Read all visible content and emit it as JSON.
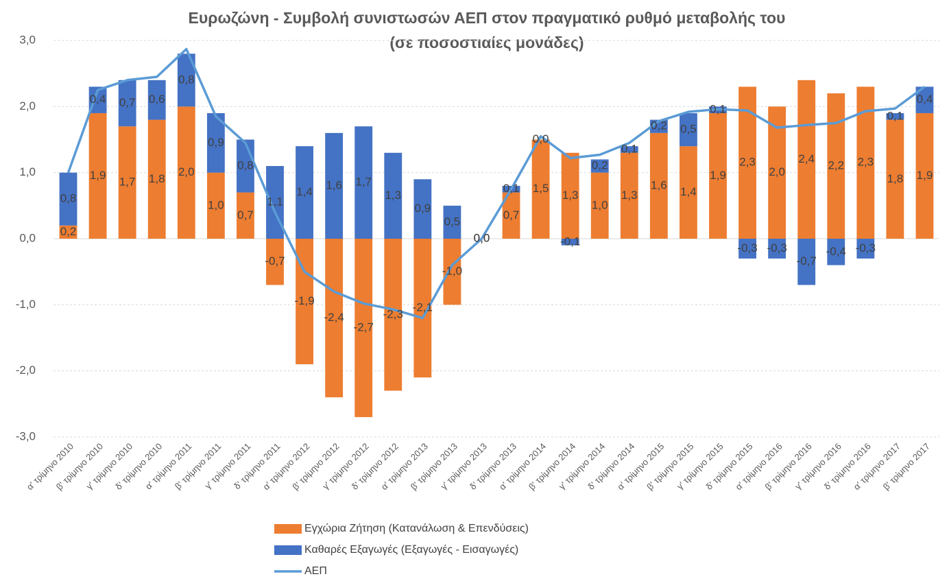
{
  "chart_data": {
    "type": "bar",
    "stacked": true,
    "title": "Ευρωζώνη - Συμβολή συνιστωσών ΑΕΠ στον πραγματικό ρυθμό μεταβολής του",
    "subtitle": "(σε ποσοστιαίες μονάδες)",
    "categories": [
      "α' τρίμηνο 2010",
      "β' τρίμηνο 2010",
      "γ' τρίμηνο 2010",
      "δ' τρίμηνο 2010",
      "α' τρίμηνο 2011",
      "β' τρίμηνο 2011",
      "γ' τρίμηνο 2011",
      "δ' τρίμηνο 2011",
      "α' τρίμηνο 2012",
      "β' τρίμηνο 2012",
      "γ' τρίμηνο 2012",
      "δ' τρίμηνο 2012",
      "α' τρίμηνο 2013",
      "β' τρίμηνο 2013",
      "γ' τρίμηνο 2013",
      "δ' τρίμηνο 2013",
      "α' τρίμηνο 2014",
      "β' τρίμηνο 2014",
      "γ' τρίμηνο 2014",
      "δ' τρίμηνο 2014",
      "α' τρίμηνο 2015",
      "β' τρίμηνο 2015",
      "γ' τρίμηνο 2015",
      "δ' τρίμηνο 2015",
      "α' τρίμηνο 2016",
      "β' τρίμηνο 2016",
      "γ' τρίμηνο 2016",
      "δ' τρίμηνο 2016",
      "α' τρίμηνο 2017",
      "β' τρίμηνο 2017"
    ],
    "series": [
      {
        "name": "Εγχώρια Ζήτηση (Κατανάλωση & Επενδύσεις)",
        "type": "bar",
        "color": "#ed7d31",
        "values": [
          0.2,
          1.9,
          1.7,
          1.8,
          2.0,
          1.0,
          0.7,
          -0.7,
          -1.9,
          -2.4,
          -2.7,
          -2.3,
          -2.1,
          -1.0,
          0.0,
          0.7,
          1.5,
          1.3,
          1.0,
          1.3,
          1.6,
          1.4,
          1.9,
          2.3,
          2.0,
          2.4,
          2.2,
          2.3,
          1.8,
          1.9
        ],
        "value_labels": [
          "0,2",
          "1,9",
          "1,7",
          "1,8",
          "2,0",
          "1,0",
          "0,7",
          "-0,7",
          "-1,9",
          "-2,4",
          "-2,7",
          "-2,3",
          "-2,1",
          "-1,0",
          "0,0",
          "0,7",
          "1,5",
          "1,3",
          "1,0",
          "1,3",
          "1,6",
          "1,4",
          "1,9",
          "2,3",
          "2,0",
          "2,4",
          "2,2",
          "2,3",
          "1,8",
          "1,9"
        ]
      },
      {
        "name": "Καθαρές Εξαγωγές (Εξαγωγές - Εισαγωγές)",
        "type": "bar",
        "color": "#4472c4",
        "values": [
          0.8,
          0.4,
          0.7,
          0.6,
          0.8,
          0.9,
          0.8,
          1.1,
          1.4,
          1.6,
          1.7,
          1.3,
          0.9,
          0.5,
          0.0,
          0.1,
          0.0,
          -0.1,
          0.2,
          0.1,
          0.2,
          0.5,
          0.1,
          -0.3,
          -0.3,
          -0.7,
          -0.4,
          -0.3,
          0.1,
          0.4
        ],
        "value_labels": [
          "0,8",
          "0,4",
          "0,7",
          "0,6",
          "0,8",
          "0,9",
          "0,8",
          "1,1",
          "1,4",
          "1,6",
          "1,7",
          "1,3",
          "0,9",
          "0,5",
          "0,0",
          "0,1",
          "0,0",
          "-0,1",
          "0,2",
          "0,1",
          "0,2",
          "0,5",
          "0,1",
          "-0,3",
          "-0,3",
          "-0,7",
          "-0,4",
          "-0,3",
          "0,1",
          "0,4"
        ]
      },
      {
        "name": "ΑΕΠ",
        "type": "line",
        "color": "#5b9bd5",
        "values": [
          1.0,
          2.25,
          2.4,
          2.45,
          2.87,
          1.85,
          1.45,
          0.4,
          -0.5,
          -0.8,
          -0.98,
          -1.07,
          -1.2,
          -0.4,
          0.0,
          0.75,
          1.55,
          1.22,
          1.27,
          1.45,
          1.78,
          1.92,
          1.96,
          1.94,
          1.68,
          1.72,
          1.75,
          1.93,
          1.97,
          2.3
        ]
      }
    ],
    "ylim": [
      -3,
      3
    ],
    "yticks": [
      {
        "value": -3,
        "label": "-3,0"
      },
      {
        "value": -2,
        "label": "-2,0"
      },
      {
        "value": -1,
        "label": "-1,0"
      },
      {
        "value": 0,
        "label": "0,0"
      },
      {
        "value": 1,
        "label": "1,0"
      },
      {
        "value": 2,
        "label": "2,0"
      },
      {
        "value": 3,
        "label": "3,0"
      }
    ],
    "grid": true
  }
}
